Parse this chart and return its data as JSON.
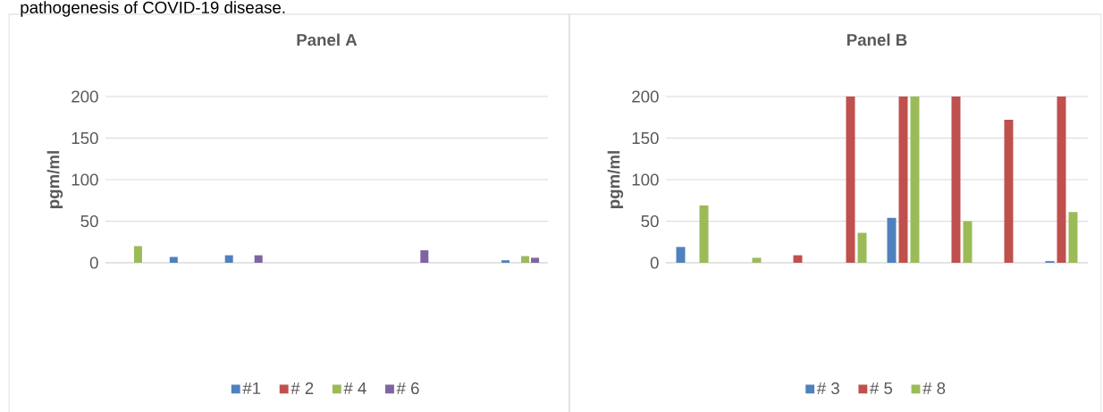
{
  "chart_data": [
    {
      "type": "bar",
      "title": "Panel A",
      "ylabel": "pgm/ml",
      "annotations": [
        "pathogenesis of COVID-19 disease."
      ],
      "categories": [
        null,
        null,
        null,
        null,
        null,
        null,
        null,
        null
      ],
      "ylim": [
        0,
        200
      ],
      "yticks": [
        0,
        50,
        100,
        150,
        200
      ],
      "grid": "y",
      "legend": "bottom",
      "series": [
        {
          "name": "#1",
          "color": "#4f81bd",
          "values": [
            0,
            7,
            9,
            0,
            0,
            0,
            0,
            3
          ]
        },
        {
          "name": "# 2",
          "color": "#c0504d",
          "values": [
            0,
            0,
            0,
            0,
            0,
            0,
            0,
            0
          ]
        },
        {
          "name": "# 4",
          "color": "#9bbb59",
          "values": [
            20,
            0,
            0,
            0,
            0,
            0,
            0,
            8
          ]
        },
        {
          "name": "# 6",
          "color": "#8064a2",
          "values": [
            0,
            0,
            9,
            0,
            0,
            15,
            0,
            6
          ]
        }
      ]
    },
    {
      "type": "bar",
      "title": "Panel B",
      "ylabel": "pgm/ml",
      "categories": [
        null,
        null,
        null,
        null,
        null,
        null,
        null,
        null
      ],
      "ylim": [
        0,
        200
      ],
      "yticks": [
        0,
        50,
        100,
        150,
        200
      ],
      "grid": "y",
      "legend": "bottom",
      "series": [
        {
          "name": "# 3",
          "color": "#4f81bd",
          "values": [
            19,
            0,
            0,
            0,
            54,
            0,
            0,
            2
          ]
        },
        {
          "name": "# 5",
          "color": "#c0504d",
          "values": [
            0,
            0,
            9,
            200,
            200,
            200,
            172,
            200
          ]
        },
        {
          "name": "# 8",
          "color": "#9bbb59",
          "values": [
            69,
            6,
            0,
            36,
            200,
            50,
            0,
            61
          ]
        }
      ]
    }
  ]
}
